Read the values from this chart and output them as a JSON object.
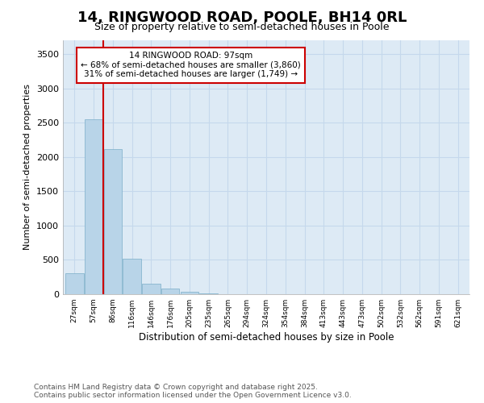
{
  "title": "14, RINGWOOD ROAD, POOLE, BH14 0RL",
  "subtitle": "Size of property relative to semi-detached houses in Poole",
  "xlabel": "Distribution of semi-detached houses by size in Poole",
  "ylabel": "Number of semi-detached properties",
  "categories": [
    "27sqm",
    "57sqm",
    "86sqm",
    "116sqm",
    "146sqm",
    "176sqm",
    "205sqm",
    "235sqm",
    "265sqm",
    "294sqm",
    "324sqm",
    "354sqm",
    "384sqm",
    "413sqm",
    "443sqm",
    "473sqm",
    "502sqm",
    "532sqm",
    "562sqm",
    "591sqm",
    "621sqm"
  ],
  "values": [
    300,
    2550,
    2110,
    520,
    150,
    80,
    40,
    10,
    0,
    0,
    0,
    0,
    0,
    0,
    0,
    0,
    0,
    0,
    0,
    0,
    0
  ],
  "bar_color": "#b8d4e8",
  "bar_edge_color": "#7aaec8",
  "vline_color": "#cc0000",
  "annotation_title": "14 RINGWOOD ROAD: 97sqm",
  "annotation_line2": "← 68% of semi-detached houses are smaller (3,860)",
  "annotation_line3": "31% of semi-detached houses are larger (1,749) →",
  "annotation_box_color": "#cc0000",
  "ylim": [
    0,
    3700
  ],
  "yticks": [
    0,
    500,
    1000,
    1500,
    2000,
    2500,
    3000,
    3500
  ],
  "fig_bg_color": "#ffffff",
  "plot_bg_color": "#ddeaf5",
  "grid_color": "#c5d8ec",
  "footer_line1": "Contains HM Land Registry data © Crown copyright and database right 2025.",
  "footer_line2": "Contains public sector information licensed under the Open Government Licence v3.0."
}
